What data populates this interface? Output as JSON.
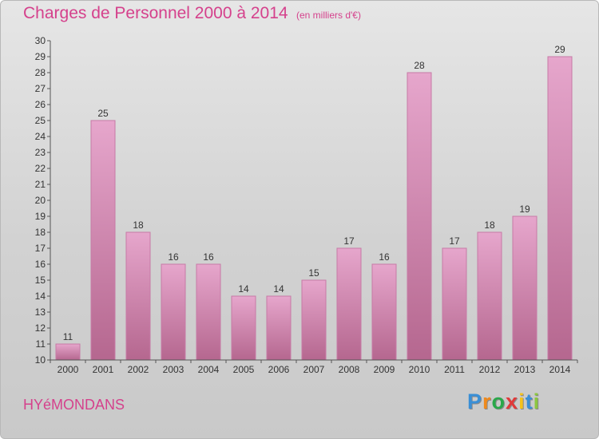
{
  "header": {
    "title": "Charges de Personnel 2000 à 2014",
    "subtitle": "(en milliers d'€)"
  },
  "footer": {
    "commune": "HYéMONDANS",
    "brand_letters": [
      "P",
      "r",
      "o",
      "x",
      "i",
      "t",
      "i"
    ],
    "brand_colors": [
      "#3a8fd6",
      "#f08a1c",
      "#2aa84a",
      "#e03a3a",
      "#f5c21b",
      "#3a8fd6",
      "#8cc63f"
    ]
  },
  "colors": {
    "bar_light": "#e6a6cc",
    "bar_dark": "#b5678f",
    "bar_edge": "#c77aa6"
  },
  "chart_data": {
    "type": "bar",
    "title": "Charges de Personnel 2000 à 2014",
    "subtitle": "(en milliers d'€)",
    "categories": [
      "2000",
      "2001",
      "2002",
      "2003",
      "2004",
      "2005",
      "2006",
      "2007",
      "2008",
      "2009",
      "2010",
      "2011",
      "2012",
      "2013",
      "2014"
    ],
    "values": [
      11,
      25,
      18,
      16,
      16,
      14,
      14,
      15,
      17,
      16,
      28,
      17,
      18,
      19,
      29
    ],
    "ylim": [
      10,
      30
    ],
    "yticks": [
      10,
      11,
      12,
      13,
      14,
      15,
      16,
      17,
      18,
      19,
      20,
      21,
      22,
      23,
      24,
      25,
      26,
      27,
      28,
      29,
      30
    ],
    "grid": false
  }
}
